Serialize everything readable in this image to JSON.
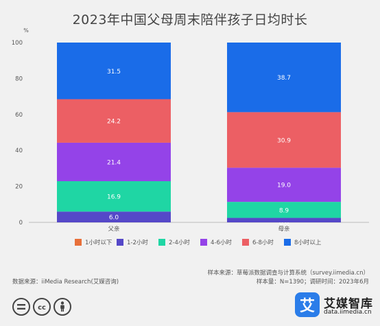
{
  "chart_data": {
    "type": "bar",
    "stacked": true,
    "title": "2023年中国父母周末陪伴孩子日均时长",
    "ylabel": "%",
    "ylim": [
      0,
      100
    ],
    "yticks": [
      0,
      20,
      40,
      60,
      80,
      100
    ],
    "categories": [
      "父亲",
      "母亲"
    ],
    "series": [
      {
        "name": "1小时以下",
        "color": "#e8703a",
        "values": [
          0.0,
          0.0
        ],
        "labels": [
          "",
          "0.0"
        ]
      },
      {
        "name": "1-2小时",
        "color": "#5548c8",
        "values": [
          6.0,
          2.5
        ],
        "labels": [
          "6.0",
          ""
        ]
      },
      {
        "name": "2-4小时",
        "color": "#1fd6a4",
        "values": [
          16.9,
          8.9
        ],
        "labels": [
          "16.9",
          "8.9"
        ]
      },
      {
        "name": "4-6小时",
        "color": "#9443e8",
        "values": [
          21.4,
          19.0
        ],
        "labels": [
          "21.4",
          "19.0"
        ]
      },
      {
        "name": "6-8小时",
        "color": "#ec5f64",
        "values": [
          24.2,
          30.9
        ],
        "labels": [
          "24.2",
          "30.9"
        ]
      },
      {
        "name": "8小时以上",
        "color": "#1a6ce8",
        "values": [
          31.5,
          38.7
        ],
        "labels": [
          "31.5",
          "38.7"
        ]
      }
    ],
    "legend_position": "bottom",
    "grid": false
  },
  "footer": {
    "sample_source": "样本来源：草莓派数据调查与计算系统（survey.iimedia.cn）",
    "sample_info": "样本量：N=1390；调研时间：2023年6月",
    "data_source": "数据来源：iiMedia Research(艾媒咨询)"
  },
  "brand": {
    "logo_char": "艾",
    "name": "艾媒智库",
    "url": "data.iimedia.cn"
  },
  "icons": [
    "equal-icon",
    "cc-icon",
    "person-icon"
  ]
}
